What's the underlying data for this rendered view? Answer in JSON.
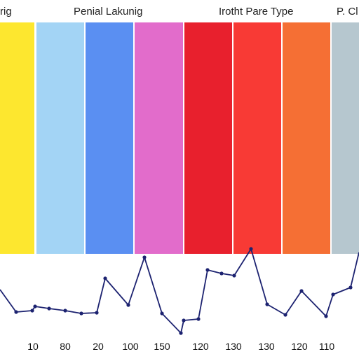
{
  "header_labels": [
    "rig",
    "Penial Lakunig",
    "Irotht Pare Type",
    "P. Cl"
  ],
  "chart_data": [
    {
      "type": "bar",
      "bands": [
        {
          "color": "#fde72f"
        },
        {
          "color": "#a3d4f5"
        },
        {
          "color": "#5a8ff2"
        },
        {
          "color": "#e26ccb"
        },
        {
          "color": "#e8202d"
        },
        {
          "color": "#f83a35"
        },
        {
          "color": "#f56f34"
        },
        {
          "color": "#b6c7cf"
        }
      ]
    },
    {
      "type": "line",
      "line_color": "#1c2270",
      "x_tick_labels": [
        "10",
        "80",
        "20",
        "100",
        "150",
        "120",
        "130",
        "130",
        "120",
        "110"
      ],
      "values": [
        72,
        40,
        42,
        48,
        45,
        42,
        38,
        39,
        88,
        50,
        118,
        38,
        10,
        28,
        30,
        100,
        95,
        92,
        130,
        51,
        36,
        70,
        34,
        65,
        75,
        125
      ]
    }
  ]
}
